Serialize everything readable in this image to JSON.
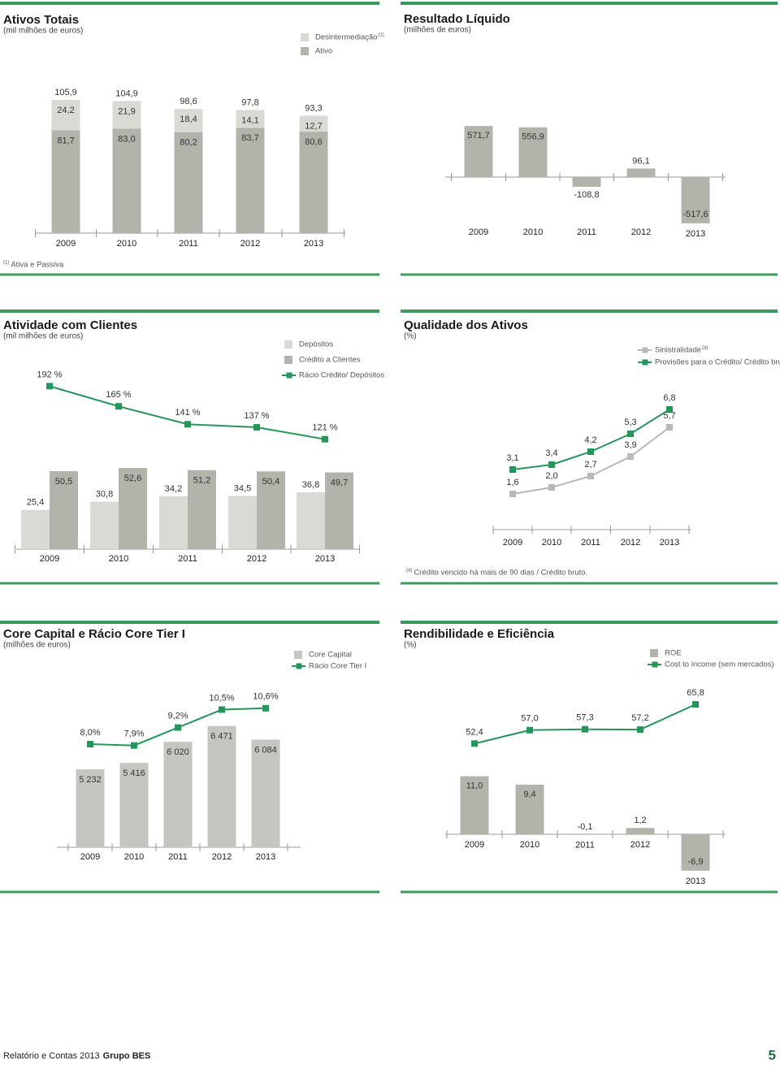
{
  "chart_data": [
    {
      "type": "bar",
      "title": "Ativos Totais",
      "subtitle": "(mil milhões de euros)",
      "stacked": true,
      "categories": [
        "2009",
        "2010",
        "2011",
        "2012",
        "2013"
      ],
      "series": [
        {
          "name": "Ativo",
          "color": "#b3b3ac",
          "values": [
            81.7,
            83.0,
            80.2,
            83.7,
            80.6
          ],
          "value_labels": [
            "81,7",
            "83,0",
            "80,2",
            "83,7",
            "80,6"
          ]
        },
        {
          "name": "Desintermediação",
          "note": "(1)",
          "color": "#dadad5",
          "values": [
            24.2,
            21.9,
            18.4,
            14.1,
            12.7
          ],
          "value_labels": [
            "24,2",
            "21,9",
            "18,4",
            "14,1",
            "12,7"
          ]
        }
      ],
      "totals": [
        105.9,
        104.9,
        98.6,
        97.8,
        93.3
      ],
      "total_labels": [
        "105,9",
        "104,9",
        "98,6",
        "97,8",
        "93,3"
      ],
      "ylim": [
        0,
        110
      ],
      "footnote": {
        "marker": "(1)",
        "text": "Ativa e Passiva"
      }
    },
    {
      "type": "bar",
      "title": "Resultado Líquido",
      "subtitle": "(milhões de euros)",
      "categories": [
        "2009",
        "2010",
        "2011",
        "2012",
        "2013"
      ],
      "series": [
        {
          "color": "#b3b3ac",
          "values": [
            571.7,
            556.9,
            -108.8,
            96.1,
            -517.6
          ],
          "value_labels": [
            "571,7",
            "556,9",
            "-108,8",
            "96,1",
            "-517,6"
          ]
        }
      ],
      "ylim": [
        -600,
        600
      ]
    },
    {
      "type": "combo",
      "title": "Atividade com Clientes",
      "subtitle": "(mil milhões de euros)",
      "categories": [
        "2009",
        "2010",
        "2011",
        "2012",
        "2013"
      ],
      "series": [
        {
          "name": "Depósitos",
          "type": "bar",
          "color": "#dadad5",
          "values": [
            25.4,
            30.8,
            34.2,
            34.5,
            36.8
          ],
          "value_labels": [
            "25,4",
            "30,8",
            "34,2",
            "34,5",
            "36,8"
          ]
        },
        {
          "name": "Crédito a Clientes",
          "type": "bar",
          "color": "#b3b3ac",
          "values": [
            50.5,
            52.6,
            51.2,
            50.4,
            49.7
          ],
          "value_labels": [
            "50,5",
            "52,6",
            "51,2",
            "50,4",
            "49,7"
          ]
        },
        {
          "name": "Rácio Crédito/ Depósitos",
          "type": "line",
          "axis": "y2",
          "color": "#24965a",
          "values": [
            192,
            165,
            141,
            137,
            121
          ],
          "value_labels": [
            "192 %",
            "165 %",
            "141 %",
            "137 %",
            "121 %"
          ]
        }
      ],
      "ylim": [
        0,
        60
      ],
      "y2lim": [
        100,
        200
      ]
    },
    {
      "type": "line",
      "title": "Qualidade dos Ativos",
      "subtitle": "(%)",
      "categories": [
        "2009",
        "2010",
        "2011",
        "2012",
        "2013"
      ],
      "series": [
        {
          "name": "Sinistralidade",
          "note": "(a)",
          "color": "#b8b8b4",
          "values": [
            1.6,
            2.0,
            2.7,
            3.9,
            5.7
          ],
          "value_labels": [
            "1,6",
            "2,0",
            "2,7",
            "3,9",
            "5,7"
          ]
        },
        {
          "name": "Provisões para o Crédito/ Crédito bruto",
          "color": "#24965a",
          "values": [
            3.1,
            3.4,
            4.2,
            5.3,
            6.8
          ],
          "value_labels": [
            "3,1",
            "3,4",
            "4,2",
            "5,3",
            "6,8"
          ]
        }
      ],
      "ylim": [
        0,
        8
      ],
      "footnote": {
        "marker": "(a)",
        "text": "Crédito vencido há mais de 90 dias / Crédito bruto."
      }
    },
    {
      "type": "combo",
      "title": "Core Capital e Rácio Core Tier I",
      "subtitle": "(milhões de euros)",
      "categories": [
        "2009",
        "2010",
        "2011",
        "2012",
        "2013"
      ],
      "series": [
        {
          "name": "Core Capital",
          "type": "bar",
          "color": "#c6c6c0",
          "values": [
            5232,
            5416,
            6020,
            6471,
            6084
          ],
          "value_labels": [
            "5 232",
            "5 416",
            "6 020",
            "6 471",
            "6 084"
          ]
        },
        {
          "name": "Rácio Core Tier I",
          "type": "line",
          "axis": "y2",
          "color": "#24965a",
          "values": [
            8.0,
            7.9,
            9.2,
            10.5,
            10.6
          ],
          "value_labels": [
            "8,0%",
            "7,9%",
            "9,2%",
            "10,5%",
            "10,6%"
          ]
        }
      ],
      "ylim": [
        3000,
        7000
      ],
      "y2lim": [
        6,
        12
      ]
    },
    {
      "type": "combo",
      "title": "Rendibilidade e Eficiência",
      "subtitle": "(%)",
      "categories": [
        "2009",
        "2010",
        "2011",
        "2012",
        "2013"
      ],
      "series": [
        {
          "name": "ROE",
          "type": "bar",
          "color": "#b3b3ac",
          "values": [
            11.0,
            9.4,
            -0.1,
            1.2,
            -6.9
          ],
          "value_labels": [
            "11,0",
            "9,4",
            "-0,1",
            "1,2",
            "-6,9"
          ]
        },
        {
          "name": "Cost to income (sem mercados)",
          "type": "line",
          "axis": "y2",
          "color": "#24965a",
          "values": [
            52.4,
            57.0,
            57.3,
            57.2,
            65.8
          ],
          "value_labels": [
            "52,4",
            "57,0",
            "57,3",
            "57,2",
            "65,8"
          ]
        }
      ],
      "ylim": [
        -10,
        14
      ],
      "y2lim": [
        40,
        70
      ]
    }
  ],
  "footer": {
    "report": "Relatório e Contas 2013",
    "brand": "Grupo BES",
    "page": "5"
  }
}
